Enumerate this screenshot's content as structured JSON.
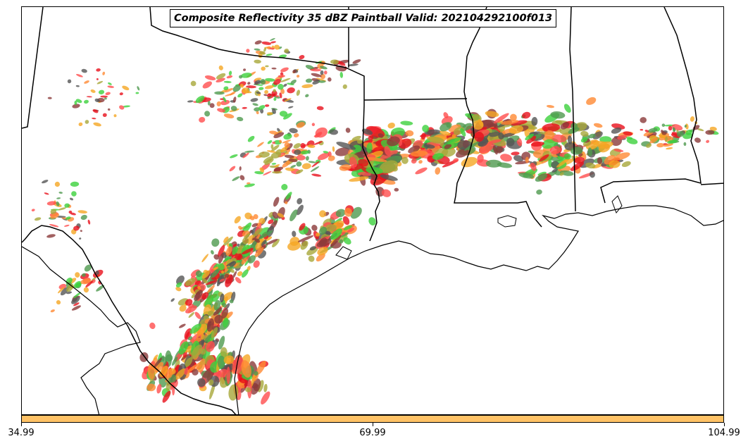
{
  "title": "Composite Reflectivity 35 dBZ Paintball Valid: 202104292100f013",
  "colors": {
    "colorbar": "#ffc266",
    "boundary": "#000000",
    "paintball_members": [
      "#e8101c",
      "#ff4d4d",
      "#ff8a33",
      "#f5a623",
      "#3cd13c",
      "#4f9a4f",
      "#a8a83a",
      "#8b3a3a",
      "#555555"
    ]
  },
  "colorbar": {
    "ticks": [
      {
        "label": "34.99",
        "value": 34.99
      },
      {
        "label": "69.99",
        "value": 69.99
      },
      {
        "label": "104.99",
        "value": 104.99
      }
    ]
  }
}
